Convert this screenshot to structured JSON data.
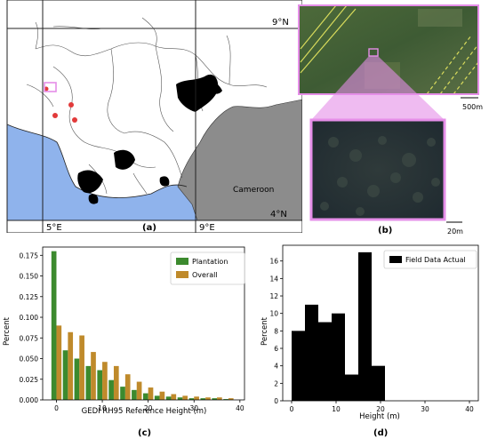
{
  "map": {
    "panel_label": "(a)",
    "lat_top": "9°N",
    "lat_bottom": "4°N",
    "lon_left": "5°E",
    "lon_right": "9°E",
    "country_label": "Cameroon",
    "colors": {
      "ocean": "#8fb3ec",
      "cameroon": "#8c8c8c",
      "plantation": "#000000",
      "field_sites": "#e23a3a",
      "highlight": "#e58ee8"
    }
  },
  "satellite": {
    "panel_label": "(b)",
    "scale_top": "500m",
    "scale_bottom": "20m",
    "frame_color": "#e58ee8"
  },
  "chart_data": [
    {
      "panel_label": "(c)",
      "type": "bar",
      "xlabel": "GEDI RH95 Reference Height (m)",
      "ylabel": "Percent",
      "xlim": [
        -3,
        41
      ],
      "ylim": [
        0,
        0.185
      ],
      "xticks": [
        "0",
        "10",
        "20",
        "30",
        "40"
      ],
      "yticks": [
        "0.000",
        "0.025",
        "0.050",
        "0.075",
        "0.100",
        "0.125",
        "0.150",
        "0.175"
      ],
      "legend_position": "top-right",
      "x": [
        0,
        2.5,
        5,
        7.5,
        10,
        12.5,
        15,
        17.5,
        20,
        22.5,
        25,
        27.5,
        30,
        32.5,
        35,
        37.5
      ],
      "series": [
        {
          "name": "Plantation",
          "color": "#3c8a2e",
          "values": [
            0.18,
            0.06,
            0.05,
            0.041,
            0.036,
            0.024,
            0.016,
            0.012,
            0.008,
            0.005,
            0.004,
            0.003,
            0.002,
            0.002,
            0.002,
            0.001
          ]
        },
        {
          "name": "Overall",
          "color": "#bf8a2b",
          "values": [
            0.09,
            0.082,
            0.078,
            0.058,
            0.046,
            0.041,
            0.031,
            0.022,
            0.015,
            0.01,
            0.007,
            0.005,
            0.004,
            0.003,
            0.003,
            0.002
          ]
        }
      ]
    },
    {
      "panel_label": "(d)",
      "type": "bar",
      "xlabel": "Height (m)",
      "ylabel": "Percent",
      "xlim": [
        -2,
        42
      ],
      "ylim": [
        0,
        17.8
      ],
      "xticks": [
        "0",
        "10",
        "20",
        "30",
        "40"
      ],
      "yticks": [
        "0",
        "2",
        "4",
        "6",
        "8",
        "10",
        "12",
        "14",
        "16"
      ],
      "legend_position": "top-right",
      "x": [
        0,
        3,
        6,
        9,
        12,
        15,
        18
      ],
      "bin_width": 3,
      "series": [
        {
          "name": "Field Data Actual",
          "color": "#000000",
          "values": [
            8,
            11,
            9,
            10,
            3,
            17,
            4
          ]
        }
      ]
    }
  ]
}
